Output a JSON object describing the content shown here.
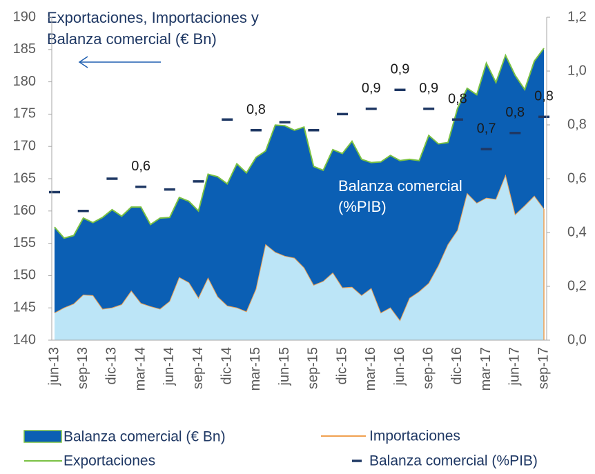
{
  "chart_data": {
    "type": "area",
    "title": [
      "Exportaciones, Importaciones y",
      "Balanza comercial (€ Bn)"
    ],
    "annotation": [
      "Balanza comercial",
      "(%PIB)"
    ],
    "categories": [
      "jun-13",
      null,
      null,
      "sep-13",
      null,
      null,
      "dic-13",
      null,
      null,
      "mar-14",
      null,
      null,
      "jun-14",
      null,
      null,
      "sep-14",
      null,
      null,
      "dic-14",
      null,
      null,
      "mar-15",
      null,
      null,
      "jun-15",
      null,
      null,
      "sep-15",
      null,
      null,
      "dic-15",
      null,
      null,
      "mar-16",
      null,
      null,
      "jun-16",
      null,
      null,
      "sep-16",
      null,
      null,
      "dic-16",
      null,
      null,
      "mar-17",
      null,
      null,
      "jun-17",
      null,
      null,
      "sep-17"
    ],
    "area_name": "Balanza comercial (€ Bn)",
    "area_color": "#0b5fb4",
    "series": [
      {
        "name": "Exportaciones",
        "color": "#7ac143",
        "values": [
          157.5,
          155.8,
          156.2,
          158.9,
          158.2,
          159.0,
          160.2,
          159.2,
          160.6,
          160.6,
          157.9,
          158.9,
          159.0,
          162.1,
          161.5,
          160.0,
          165.7,
          165.3,
          164.2,
          167.3,
          165.9,
          168.3,
          169.3,
          173.3,
          173.2,
          172.5,
          173.0,
          166.9,
          166.3,
          169.5,
          168.9,
          170.8,
          168.0,
          167.5,
          167.6,
          168.6,
          167.8,
          168.0,
          167.8,
          171.7,
          170.4,
          170.6,
          175.9,
          179.0,
          178.0,
          182.9,
          179.9,
          184.1,
          181.0,
          178.8,
          183.2,
          185.2
        ]
      },
      {
        "name": "Importaciones",
        "color": "#f0a050",
        "fill": "#bce5f7",
        "values": [
          144.2,
          145.0,
          145.6,
          147.0,
          146.9,
          144.8,
          145.0,
          145.5,
          147.6,
          145.7,
          145.2,
          144.8,
          146.0,
          149.7,
          148.9,
          146.5,
          149.6,
          146.7,
          145.3,
          145.0,
          144.4,
          147.9,
          154.8,
          153.6,
          153.0,
          152.7,
          151.2,
          148.5,
          149.1,
          150.4,
          148.1,
          148.2,
          146.9,
          148.0,
          144.2,
          145.0,
          143.0,
          146.5,
          147.5,
          148.8,
          151.5,
          154.8,
          157.0,
          162.7,
          161.2,
          162.0,
          161.8,
          165.5,
          159.4,
          160.8,
          162.3,
          160.3
        ]
      },
      {
        "name": "Balanza comercial (%PIB)",
        "color": "#1f3864",
        "axis": "y2",
        "values": [
          0.55,
          null,
          null,
          0.48,
          null,
          null,
          0.6,
          null,
          null,
          0.57,
          null,
          null,
          0.56,
          null,
          null,
          0.59,
          null,
          null,
          0.82,
          null,
          null,
          0.78,
          null,
          null,
          0.81,
          null,
          null,
          0.78,
          null,
          null,
          0.84,
          null,
          null,
          0.86,
          null,
          null,
          0.93,
          null,
          null,
          0.86,
          null,
          null,
          0.82,
          null,
          null,
          0.71,
          null,
          null,
          0.77,
          null,
          null,
          0.83
        ],
        "value_labels": [
          null,
          null,
          null,
          null,
          null,
          null,
          null,
          null,
          null,
          "0,6",
          null,
          null,
          null,
          null,
          null,
          null,
          null,
          null,
          null,
          null,
          null,
          "0,8",
          null,
          null,
          null,
          null,
          null,
          null,
          null,
          null,
          null,
          null,
          null,
          "0,9",
          null,
          null,
          "0,9",
          null,
          null,
          "0,9",
          null,
          null,
          "0,8",
          null,
          null,
          "0,7",
          null,
          null,
          "0,8",
          null,
          null,
          "0,8"
        ]
      }
    ],
    "ylim": [
      140,
      190
    ],
    "yticks": [
      140,
      145,
      150,
      155,
      160,
      165,
      170,
      175,
      180,
      185,
      190
    ],
    "y2lim": [
      0,
      1.2
    ],
    "y2ticks": [
      {
        "value": 0,
        "label": "0,0"
      },
      {
        "value": 0.2,
        "label": "0,2"
      },
      {
        "value": 0.4,
        "label": "0,4"
      },
      {
        "value": 0.6,
        "label": "0,6"
      },
      {
        "value": 0.8,
        "label": "0,8"
      },
      {
        "value": 1.0,
        "label": "1,0"
      },
      {
        "value": 1.2,
        "label": "1,2"
      }
    ],
    "grid": false
  }
}
